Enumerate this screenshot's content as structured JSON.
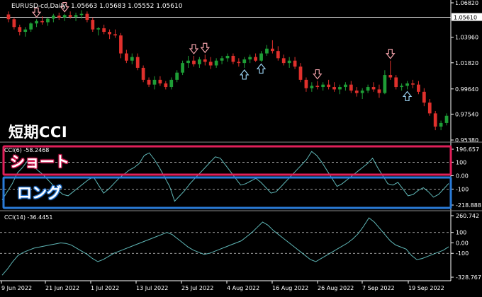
{
  "header": {
    "symbol_text": "EURUSD-cd,Daily",
    "ohlc_text": "1.05663 1.05683 1.05552 1.05610"
  },
  "annotations": {
    "big_label": "短期CCI",
    "short_label": "ショート",
    "long_label": "ロング"
  },
  "colors": {
    "bull": "#1e9e36",
    "bear": "#e0302c",
    "cci_line": "#5fb7b7",
    "short_box": "#e0205a",
    "long_box": "#2a7bd8",
    "price_line": "#c8c8c8",
    "axis": "#ffffff",
    "grid_dash": "#d0d0d0"
  },
  "icons": {
    "up_arrow": "up-arrow-icon",
    "down_arrow": "down-arrow-icon"
  },
  "chart_data": [
    {
      "type": "candlestick",
      "title": "EURUSD-cd,Daily",
      "ylim": [
        0.9538,
        1.0682
      ],
      "y_ticks": [
        "1.06820",
        "1.03960",
        "1.01820",
        "0.99640",
        "0.97540",
        "0.95380"
      ],
      "current_price": "1.05610",
      "x_tick_labels": [
        "9 Jun 2022",
        "21 Jun 2022",
        "1 Jul 2022",
        "13 Jul 2022",
        "25 Jul 2022",
        "4 Aug 2022",
        "16 Aug 2022",
        "26 Aug 2022",
        "7 Sep 2022",
        "19 Sep 2022"
      ],
      "candles": [
        [
          1.0585,
          1.061,
          1.052,
          1.0545
        ],
        [
          1.0545,
          1.056,
          1.046,
          1.048
        ],
        [
          1.048,
          1.05,
          1.041,
          1.044
        ],
        [
          1.044,
          1.048,
          1.04,
          1.046
        ],
        [
          1.046,
          1.052,
          1.044,
          1.051
        ],
        [
          1.051,
          1.0545,
          1.048,
          1.053
        ],
        [
          1.053,
          1.057,
          1.05,
          1.052
        ],
        [
          1.052,
          1.056,
          1.049,
          1.055
        ],
        [
          1.055,
          1.059,
          1.052,
          1.0575
        ],
        [
          1.0575,
          1.06,
          1.054,
          1.056
        ],
        [
          1.056,
          1.059,
          1.053,
          1.058
        ],
        [
          1.058,
          1.061,
          1.055,
          1.0565
        ],
        [
          1.0565,
          1.06,
          1.053,
          1.058
        ],
        [
          1.058,
          1.062,
          1.055,
          1.059
        ],
        [
          1.059,
          1.061,
          1.052,
          1.054
        ],
        [
          1.054,
          1.056,
          1.044,
          1.046
        ],
        [
          1.046,
          1.048,
          1.041,
          1.047
        ],
        [
          1.047,
          1.05,
          1.042,
          1.044
        ],
        [
          1.044,
          1.046,
          1.038,
          1.042
        ],
        [
          1.042,
          1.046,
          1.039,
          1.041
        ],
        [
          1.041,
          1.043,
          1.022,
          1.026
        ],
        [
          1.026,
          1.029,
          1.018,
          1.02
        ],
        [
          1.02,
          1.026,
          1.017,
          1.023
        ],
        [
          1.023,
          1.026,
          1.012,
          1.014
        ],
        [
          1.014,
          1.016,
          1.002,
          1.004
        ],
        [
          1.004,
          1.006,
          0.998,
          1.0
        ],
        [
          1.0,
          1.007,
          0.996,
          1.004
        ],
        [
          1.004,
          1.007,
          0.999,
          1.001
        ],
        [
          1.001,
          1.003,
          0.996,
          0.998
        ],
        [
          0.998,
          1.006,
          0.996,
          1.004
        ],
        [
          1.004,
          1.012,
          1.002,
          1.01
        ],
        [
          1.01,
          1.02,
          1.008,
          1.018
        ],
        [
          1.018,
          1.024,
          1.014,
          1.02
        ],
        [
          1.02,
          1.024,
          1.015,
          1.017
        ],
        [
          1.017,
          1.023,
          1.014,
          1.021
        ],
        [
          1.021,
          1.025,
          1.016,
          1.019
        ],
        [
          1.019,
          1.023,
          1.013,
          1.016
        ],
        [
          1.016,
          1.022,
          1.014,
          1.02
        ],
        [
          1.02,
          1.024,
          1.017,
          1.022
        ],
        [
          1.022,
          1.026,
          1.019,
          1.024
        ],
        [
          1.024,
          1.026,
          1.017,
          1.019
        ],
        [
          1.019,
          1.022,
          1.015,
          1.018
        ],
        [
          1.018,
          1.023,
          1.014,
          1.021
        ],
        [
          1.021,
          1.025,
          1.018,
          1.023
        ],
        [
          1.023,
          1.026,
          1.019,
          1.02
        ],
        [
          1.02,
          1.028,
          1.019,
          1.026
        ],
        [
          1.026,
          1.033,
          1.024,
          1.03
        ],
        [
          1.03,
          1.037,
          1.026,
          1.028
        ],
        [
          1.028,
          1.032,
          1.02,
          1.022
        ],
        [
          1.022,
          1.025,
          1.016,
          1.018
        ],
        [
          1.018,
          1.023,
          1.014,
          1.02
        ],
        [
          1.02,
          1.023,
          1.013,
          1.015
        ],
        [
          1.015,
          1.018,
          1.002,
          1.004
        ],
        [
          1.004,
          1.006,
          0.994,
          0.997
        ],
        [
          0.997,
          1.002,
          0.994,
          0.999
        ],
        [
          0.999,
          1.003,
          0.996,
          0.998
        ],
        [
          0.998,
          1.002,
          0.995,
          1.0
        ],
        [
          1.0,
          1.004,
          0.996,
          0.998
        ],
        [
          0.998,
          1.002,
          0.994,
          0.996
        ],
        [
          0.996,
          1.0,
          0.992,
          0.998
        ],
        [
          0.998,
          1.002,
          0.995,
          1.0
        ],
        [
          1.0,
          1.003,
          0.993,
          0.995
        ],
        [
          0.995,
          0.998,
          0.99,
          0.993
        ],
        [
          0.993,
          0.997,
          0.988,
          0.995
        ],
        [
          0.995,
          1.0,
          0.993,
          0.998
        ],
        [
          0.998,
          1.002,
          0.994,
          0.996
        ],
        [
          0.996,
          1.0,
          0.989,
          0.993
        ],
        [
          0.993,
          1.012,
          0.992,
          1.008
        ],
        [
          1.008,
          1.02,
          1.004,
          1.006
        ],
        [
          1.006,
          1.008,
          0.996,
          0.998
        ],
        [
          0.998,
          1.001,
          0.995,
          0.999
        ],
        [
          0.999,
          1.003,
          0.996,
          1.001
        ],
        [
          1.001,
          1.004,
          0.997,
          1.0
        ],
        [
          1.0,
          1.003,
          0.992,
          0.994
        ],
        [
          0.994,
          0.997,
          0.982,
          0.985
        ],
        [
          0.985,
          0.988,
          0.974,
          0.976
        ],
        [
          0.976,
          0.978,
          0.962,
          0.965
        ],
        [
          0.965,
          0.97,
          0.962,
          0.968
        ],
        [
          0.968,
          0.976,
          0.966,
          0.974
        ]
      ],
      "signals": [
        {
          "index": 5,
          "dir": "down"
        },
        {
          "index": 10,
          "dir": "down"
        },
        {
          "index": 33,
          "dir": "down"
        },
        {
          "index": 35,
          "dir": "down"
        },
        {
          "index": 42,
          "dir": "up"
        },
        {
          "index": 45,
          "dir": "up"
        },
        {
          "index": 55,
          "dir": "down"
        },
        {
          "index": 68,
          "dir": "down"
        },
        {
          "index": 71,
          "dir": "up"
        }
      ]
    },
    {
      "type": "line",
      "title": "CCI(6) -58.2468",
      "ylim": [
        -218.888,
        196.657
      ],
      "y_ticks": [
        "196.657",
        "100",
        "0.00",
        "-100",
        "-218.888"
      ],
      "levels": [
        100,
        -100
      ],
      "values": [
        -180,
        -120,
        -60,
        20,
        60,
        110,
        80,
        40,
        10,
        -30,
        -70,
        -110,
        -140,
        -150,
        -120,
        -90,
        -60,
        -30,
        -10,
        -70,
        -130,
        -100,
        -60,
        -20,
        10,
        40,
        60,
        90,
        150,
        170,
        120,
        60,
        -10,
        -80,
        -190,
        -150,
        -110,
        -60,
        -20,
        20,
        60,
        100,
        140,
        130,
        80,
        30,
        -20,
        -70,
        -60,
        -40,
        -20,
        -50,
        -90,
        -130,
        -120,
        -80,
        -40,
        0,
        40,
        80,
        120,
        180,
        150,
        100,
        40,
        -20,
        -80,
        -60,
        -30,
        0,
        30,
        60,
        90,
        130,
        60,
        0,
        -60,
        -70,
        -50,
        -100,
        -150,
        -140,
        -110,
        -90,
        -120,
        -160,
        -140,
        -100,
        -58.2468
      ]
    },
    {
      "type": "line",
      "title": "CCI(14) -36.4451",
      "ylim": [
        -328.767,
        260.742
      ],
      "y_ticks": [
        "260.742",
        "100",
        "0.00",
        "-100",
        "-328.767"
      ],
      "levels": [
        100,
        -100
      ],
      "values": [
        -310,
        -250,
        -180,
        -120,
        -90,
        -70,
        -50,
        -40,
        -30,
        -20,
        -10,
        0,
        -5,
        -20,
        -50,
        -80,
        -110,
        -150,
        -180,
        -160,
        -130,
        -100,
        -80,
        -60,
        -40,
        -20,
        0,
        20,
        40,
        60,
        80,
        100,
        80,
        40,
        0,
        -40,
        -70,
        -90,
        -110,
        -100,
        -80,
        -60,
        -40,
        -20,
        0,
        20,
        60,
        100,
        150,
        200,
        170,
        120,
        80,
        40,
        0,
        -40,
        -80,
        -120,
        -160,
        -180,
        -150,
        -120,
        -90,
        -60,
        -30,
        0,
        40,
        90,
        160,
        240,
        200,
        140,
        80,
        20,
        -20,
        -40,
        -60,
        -120,
        -160,
        -150,
        -130,
        -110,
        -90,
        -70,
        -36.4451
      ]
    }
  ]
}
